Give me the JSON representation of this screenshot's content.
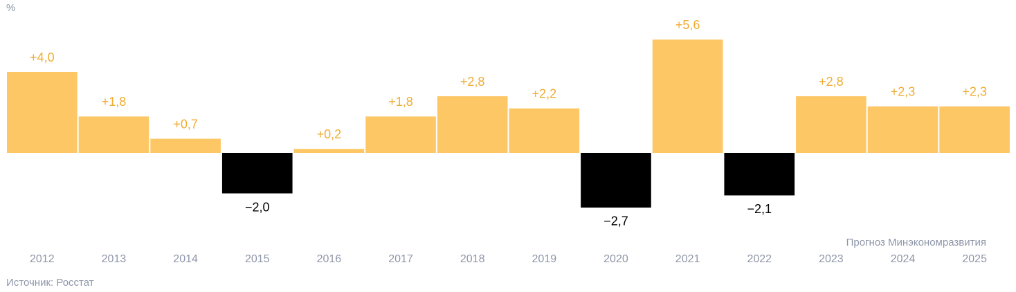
{
  "chart_data": {
    "type": "bar",
    "unit": "%",
    "categories": [
      "2012",
      "2013",
      "2014",
      "2015",
      "2016",
      "2017",
      "2018",
      "2019",
      "2020",
      "2021",
      "2022",
      "2023",
      "2024",
      "2025"
    ],
    "values": [
      4.0,
      1.8,
      0.7,
      -2.0,
      0.2,
      1.8,
      2.8,
      2.2,
      -2.7,
      5.6,
      -2.1,
      2.8,
      2.3,
      2.3
    ],
    "value_labels": [
      "+4,0",
      "+1,8",
      "+0,7",
      "−2,0",
      "+0,2",
      "+1,8",
      "+2,8",
      "+2,2",
      "−2,7",
      "+5,6",
      "−2,1",
      "+2,8",
      "+2,3",
      "+2,3"
    ],
    "color": "#fdc766",
    "negative_color": "#000000",
    "label_color": "#f0ac32",
    "annotation": "Прогноз Минэкономразвития",
    "source": "Источник: Росстат"
  }
}
